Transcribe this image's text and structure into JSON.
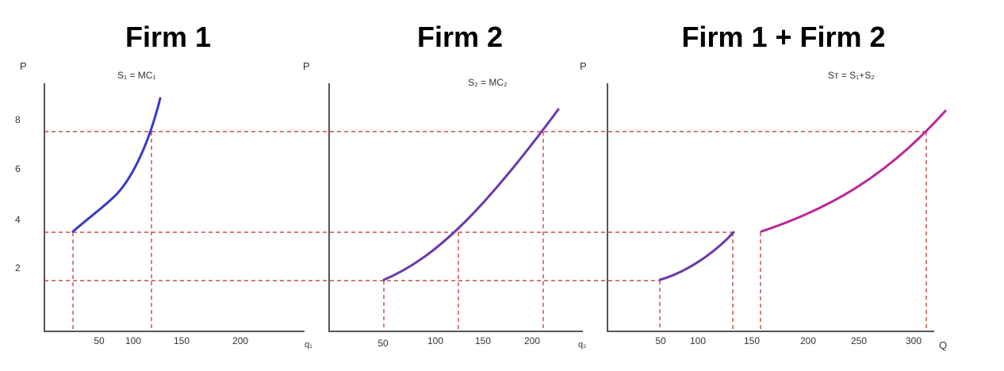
{
  "panels": [
    {
      "title": "Firm 1",
      "curve_label": "S₁ = MC₁",
      "ylabel": "P",
      "xlabel": "q₁"
    },
    {
      "title": "Firm 2",
      "curve_label": "S₂ = MC₂",
      "ylabel": "P",
      "xlabel": "q₂"
    },
    {
      "title": "Firm 1 + Firm 2",
      "curve_label": "Sᴛ = S₁+S₂",
      "ylabel": "P",
      "xlabel": "Q"
    }
  ],
  "y_ticks": [
    "8",
    "6",
    "4",
    "2"
  ],
  "colors": {
    "firm1": "#3a3ac8",
    "firm2": "#6a3aa8",
    "total": "#b8289a",
    "guides": "#c0282a",
    "axis": "#555555"
  },
  "chart_data": [
    {
      "type": "line",
      "title": "Firm 1",
      "xlabel": "q₁",
      "ylabel": "P",
      "x_ticks": [
        50,
        100,
        150,
        200
      ],
      "y_ticks": [
        2,
        4,
        6,
        8
      ],
      "series": [
        {
          "name": "S₁ = MC₁",
          "x": [
            25,
            60,
            85,
            105,
            120,
            130
          ],
          "y": [
            3.5,
            4.3,
            5.0,
            6.0,
            7.5,
            8.9
          ]
        }
      ],
      "grid": false
    },
    {
      "type": "line",
      "title": "Firm 2",
      "xlabel": "q₂",
      "ylabel": "P",
      "x_ticks": [
        50,
        100,
        150,
        200
      ],
      "series": [
        {
          "name": "S₂ = MC₂",
          "x": [
            50,
            120,
            160,
            210,
            225
          ],
          "y": [
            1.6,
            3.5,
            5.1,
            7.5,
            8.4
          ]
        }
      ],
      "grid": false
    },
    {
      "type": "line",
      "title": "Firm 1 + Firm 2",
      "xlabel": "Q",
      "ylabel": "P",
      "x_ticks": [
        50,
        100,
        150,
        200,
        250,
        300
      ],
      "series": [
        {
          "name": "Sᴛ = S₁+S₂",
          "x": [
            50,
            90,
            120,
            135
          ],
          "y": [
            1.6,
            2.3,
            3.0,
            3.5
          ]
        },
        {
          "name": "Sᴛ = S₁+S₂",
          "x": [
            160,
            200,
            250,
            310,
            330
          ],
          "y": [
            3.5,
            4.2,
            5.4,
            7.5,
            8.4
          ]
        }
      ],
      "grid": false
    }
  ]
}
